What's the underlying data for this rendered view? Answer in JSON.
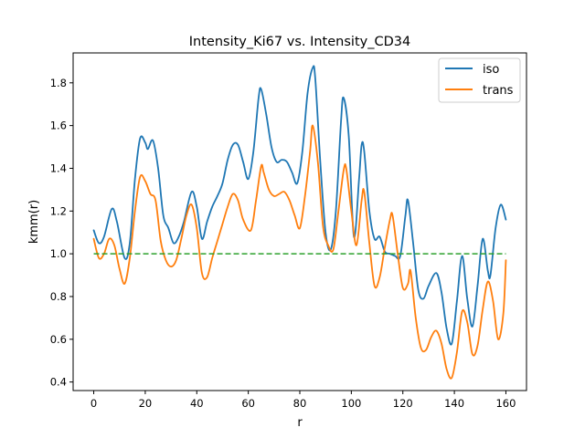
{
  "chart_data": {
    "type": "line",
    "title": "Intensity_Ki67 vs. Intensity_CD34",
    "xlabel": "r",
    "ylabel": "kmm(r)",
    "xlim": [
      -8,
      168
    ],
    "ylim": [
      0.36,
      1.94
    ],
    "xticks": [
      0,
      20,
      40,
      60,
      80,
      100,
      120,
      140,
      160
    ],
    "yticks": [
      0.4,
      0.6,
      0.8,
      1.0,
      1.2,
      1.4,
      1.6,
      1.8
    ],
    "ytick_labels": [
      "0.4",
      "0.6",
      "0.8",
      "1.0",
      "1.2",
      "1.4",
      "1.6",
      "1.8"
    ],
    "legend_position": "top-right",
    "grid": false,
    "reference_line": {
      "y": 1.0,
      "style": "dashed",
      "color": "#2ca02c"
    },
    "series": [
      {
        "name": "iso",
        "color": "#1f77b4",
        "points": [
          [
            0,
            1.11
          ],
          [
            2,
            1.05
          ],
          [
            4,
            1.08
          ],
          [
            7,
            1.21
          ],
          [
            9,
            1.15
          ],
          [
            12,
            0.98
          ],
          [
            14,
            1.05
          ],
          [
            16,
            1.35
          ],
          [
            18,
            1.54
          ],
          [
            20,
            1.52
          ],
          [
            21,
            1.49
          ],
          [
            23,
            1.53
          ],
          [
            25,
            1.4
          ],
          [
            27,
            1.18
          ],
          [
            29,
            1.12
          ],
          [
            31,
            1.05
          ],
          [
            33,
            1.08
          ],
          [
            35,
            1.15
          ],
          [
            38,
            1.29
          ],
          [
            40,
            1.22
          ],
          [
            42,
            1.07
          ],
          [
            44,
            1.15
          ],
          [
            46,
            1.22
          ],
          [
            48,
            1.27
          ],
          [
            50,
            1.33
          ],
          [
            52,
            1.44
          ],
          [
            54,
            1.51
          ],
          [
            56,
            1.51
          ],
          [
            58,
            1.43
          ],
          [
            60,
            1.35
          ],
          [
            62,
            1.48
          ],
          [
            64,
            1.73
          ],
          [
            65,
            1.77
          ],
          [
            67,
            1.65
          ],
          [
            69,
            1.5
          ],
          [
            71,
            1.43
          ],
          [
            73,
            1.44
          ],
          [
            75,
            1.43
          ],
          [
            77,
            1.38
          ],
          [
            79,
            1.33
          ],
          [
            81,
            1.48
          ],
          [
            83,
            1.75
          ],
          [
            85,
            1.87
          ],
          [
            86,
            1.82
          ],
          [
            88,
            1.42
          ],
          [
            90,
            1.1
          ],
          [
            92,
            1.02
          ],
          [
            94,
            1.2
          ],
          [
            96,
            1.62
          ],
          [
            97,
            1.73
          ],
          [
            99,
            1.55
          ],
          [
            101,
            1.08
          ],
          [
            103,
            1.35
          ],
          [
            104,
            1.51
          ],
          [
            105,
            1.48
          ],
          [
            107,
            1.2
          ],
          [
            109,
            1.07
          ],
          [
            111,
            1.08
          ],
          [
            113,
            1.01
          ],
          [
            115,
            1.0
          ],
          [
            117,
            0.99
          ],
          [
            119,
            0.99
          ],
          [
            121,
            1.18
          ],
          [
            122,
            1.25
          ],
          [
            124,
            1.05
          ],
          [
            126,
            0.83
          ],
          [
            128,
            0.79
          ],
          [
            130,
            0.85
          ],
          [
            133,
            0.91
          ],
          [
            135,
            0.82
          ],
          [
            137,
            0.65
          ],
          [
            139,
            0.58
          ],
          [
            141,
            0.78
          ],
          [
            143,
            0.99
          ],
          [
            145,
            0.79
          ],
          [
            147,
            0.66
          ],
          [
            149,
            0.85
          ],
          [
            151,
            1.07
          ],
          [
            153,
            0.92
          ],
          [
            154,
            0.9
          ],
          [
            156,
            1.12
          ],
          [
            158,
            1.23
          ],
          [
            160,
            1.16
          ]
        ]
      },
      {
        "name": "trans",
        "color": "#ff7f0e",
        "points": [
          [
            0,
            1.07
          ],
          [
            2,
            0.98
          ],
          [
            4,
            1.0
          ],
          [
            6,
            1.07
          ],
          [
            8,
            1.04
          ],
          [
            10,
            0.93
          ],
          [
            12,
            0.86
          ],
          [
            14,
            0.98
          ],
          [
            16,
            1.2
          ],
          [
            18,
            1.36
          ],
          [
            20,
            1.34
          ],
          [
            22,
            1.28
          ],
          [
            24,
            1.25
          ],
          [
            26,
            1.06
          ],
          [
            28,
            0.97
          ],
          [
            30,
            0.94
          ],
          [
            32,
            0.97
          ],
          [
            34,
            1.07
          ],
          [
            36,
            1.18
          ],
          [
            38,
            1.23
          ],
          [
            40,
            1.12
          ],
          [
            42,
            0.91
          ],
          [
            44,
            0.89
          ],
          [
            46,
            0.98
          ],
          [
            48,
            1.06
          ],
          [
            50,
            1.14
          ],
          [
            52,
            1.22
          ],
          [
            54,
            1.28
          ],
          [
            56,
            1.25
          ],
          [
            58,
            1.16
          ],
          [
            61,
            1.11
          ],
          [
            63,
            1.25
          ],
          [
            65,
            1.41
          ],
          [
            66,
            1.38
          ],
          [
            68,
            1.3
          ],
          [
            70,
            1.27
          ],
          [
            72,
            1.28
          ],
          [
            74,
            1.29
          ],
          [
            76,
            1.25
          ],
          [
            78,
            1.18
          ],
          [
            80,
            1.12
          ],
          [
            82,
            1.27
          ],
          [
            84,
            1.48
          ],
          [
            85,
            1.6
          ],
          [
            87,
            1.43
          ],
          [
            89,
            1.13
          ],
          [
            91,
            1.04
          ],
          [
            93,
            1.02
          ],
          [
            95,
            1.2
          ],
          [
            97,
            1.39
          ],
          [
            98,
            1.4
          ],
          [
            100,
            1.2
          ],
          [
            102,
            1.04
          ],
          [
            104,
            1.25
          ],
          [
            105,
            1.29
          ],
          [
            107,
            1.05
          ],
          [
            109,
            0.85
          ],
          [
            111,
            0.89
          ],
          [
            113,
            1.03
          ],
          [
            115,
            1.16
          ],
          [
            116,
            1.18
          ],
          [
            118,
            1.0
          ],
          [
            120,
            0.84
          ],
          [
            122,
            0.86
          ],
          [
            123,
            0.92
          ],
          [
            125,
            0.7
          ],
          [
            127,
            0.56
          ],
          [
            129,
            0.55
          ],
          [
            131,
            0.61
          ],
          [
            133,
            0.64
          ],
          [
            135,
            0.58
          ],
          [
            137,
            0.46
          ],
          [
            139,
            0.42
          ],
          [
            141,
            0.54
          ],
          [
            143,
            0.73
          ],
          [
            145,
            0.68
          ],
          [
            147,
            0.53
          ],
          [
            149,
            0.57
          ],
          [
            151,
            0.74
          ],
          [
            153,
            0.87
          ],
          [
            155,
            0.78
          ],
          [
            157,
            0.6
          ],
          [
            159,
            0.72
          ],
          [
            160,
            0.97
          ]
        ]
      }
    ]
  }
}
